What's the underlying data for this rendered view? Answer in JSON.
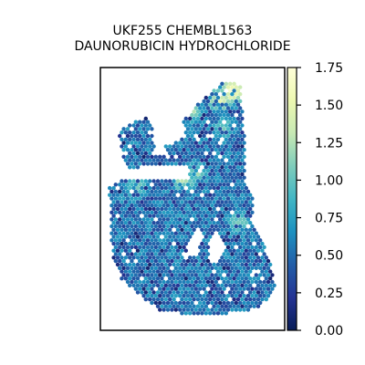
{
  "chart_data": {
    "type": "heatmap",
    "title": "UKF255 CHEMBL1563",
    "subtitle": "DAUNORUBICIN HYDROCHLORIDE",
    "xlabel": "",
    "ylabel": "",
    "colorbar": {
      "range": [
        0.0,
        1.75
      ],
      "ticks": [
        0.0,
        0.25,
        0.5,
        0.75,
        1.0,
        1.25,
        1.5,
        1.75
      ],
      "tick_labels": [
        "0.00",
        "0.25",
        "0.50",
        "0.75",
        "1.00",
        "1.25",
        "1.50",
        "1.75"
      ],
      "colormap": "YlGnBu",
      "colors": [
        "#ffffd9",
        "#edf8b1",
        "#c7e9b4",
        "#7fcdbb",
        "#41b6c4",
        "#1d91c0",
        "#225ea8",
        "#253494",
        "#081d58"
      ]
    },
    "grid": false,
    "typical_value": 0.45,
    "value_note": "spatial spot map; most spots 0.25–0.75, a few hotspots near 1.0–1.75 along the upper edges"
  }
}
